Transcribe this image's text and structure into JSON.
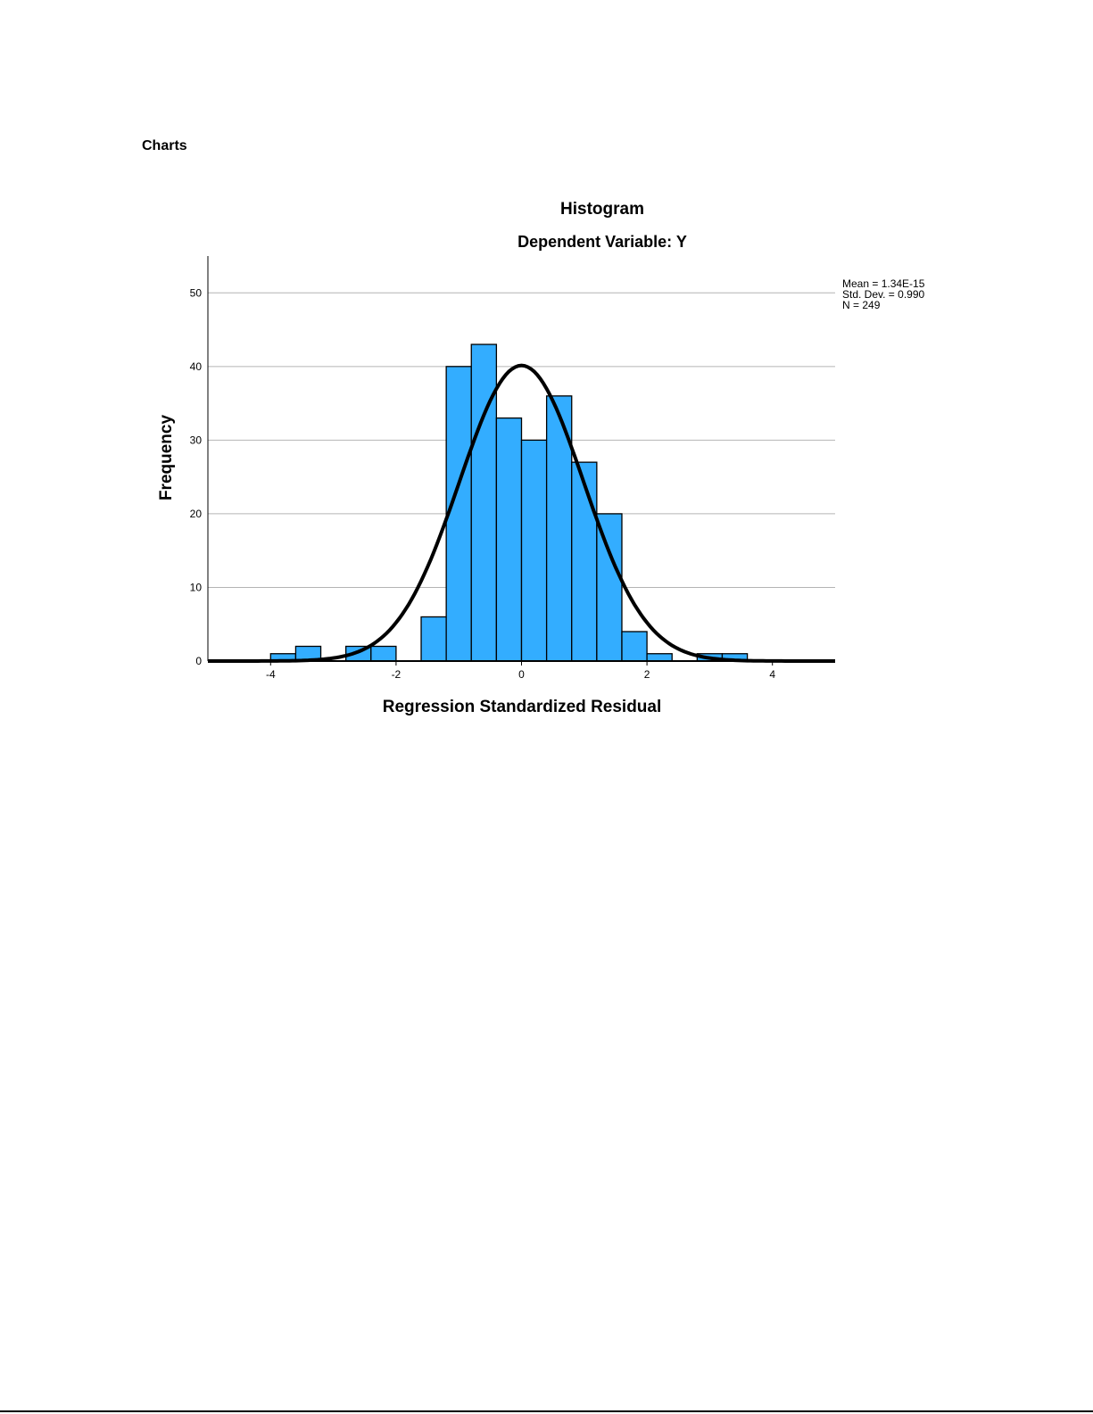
{
  "section_title": "Charts",
  "chart_data": {
    "type": "bar",
    "subtype": "histogram",
    "title": "Histogram",
    "subtitle": "Dependent Variable: Y",
    "xlabel": "Regression Standardized Residual",
    "ylabel": "Frequency",
    "xlim": [
      -5,
      5
    ],
    "ylim": [
      0,
      55
    ],
    "xticks": [
      -4,
      -2,
      0,
      2,
      4
    ],
    "yticks": [
      0,
      10,
      20,
      30,
      40,
      50
    ],
    "grid": "horizontal",
    "bin_width": 0.4,
    "bins": [
      {
        "start": -4.0,
        "end": -3.6,
        "count": 1
      },
      {
        "start": -3.6,
        "end": -3.2,
        "count": 2
      },
      {
        "start": -2.8,
        "end": -2.4,
        "count": 2
      },
      {
        "start": -2.4,
        "end": -2.0,
        "count": 2
      },
      {
        "start": -1.6,
        "end": -1.2,
        "count": 6
      },
      {
        "start": -1.2,
        "end": -0.8,
        "count": 40
      },
      {
        "start": -0.8,
        "end": -0.4,
        "count": 43
      },
      {
        "start": -0.4,
        "end": 0.0,
        "count": 33
      },
      {
        "start": 0.0,
        "end": 0.4,
        "count": 30
      },
      {
        "start": 0.4,
        "end": 0.8,
        "count": 36
      },
      {
        "start": 0.8,
        "end": 1.2,
        "count": 27
      },
      {
        "start": 1.2,
        "end": 1.6,
        "count": 20
      },
      {
        "start": 1.6,
        "end": 2.0,
        "count": 4
      },
      {
        "start": 2.0,
        "end": 2.4,
        "count": 1
      },
      {
        "start": 2.8,
        "end": 3.2,
        "count": 1
      },
      {
        "start": 3.2,
        "end": 3.6,
        "count": 1
      }
    ],
    "normal_curve": {
      "mean": 0,
      "std_dev": 0.99,
      "n": 249
    },
    "stats_legend": [
      "Mean = 1.34E-15",
      "Std. Dev. = 0.990",
      "N = 249"
    ],
    "legend_placement": "top-right",
    "colors": {
      "bar": "#33adff",
      "bar_edge": "#000000",
      "curve": "#000000",
      "grid": "#b4b4b4"
    }
  }
}
